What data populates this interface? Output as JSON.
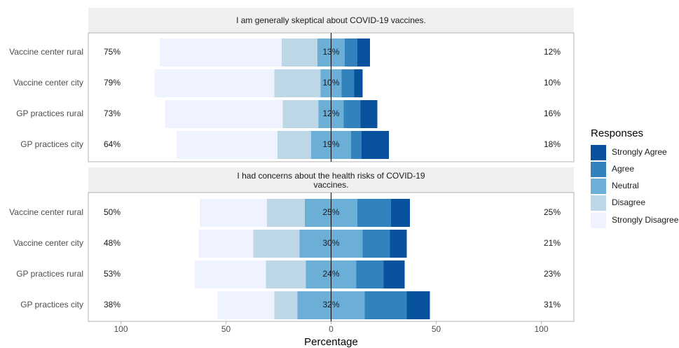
{
  "chart_data": {
    "type": "bar",
    "subtype": "diverging-stacked-horizontal-bar",
    "xlabel": "Percentage",
    "x_ticks": [
      100,
      50,
      0,
      50,
      100
    ],
    "xlim": [
      -100,
      100
    ],
    "legend": {
      "title": "Responses",
      "placement": "right",
      "entries": [
        "Strongly Agree",
        "Agree",
        "Neutral",
        "Disagree",
        "Strongly Disagree"
      ]
    },
    "colors": {
      "Strongly Agree": "#08519c",
      "Agree": "#3182bd",
      "Neutral": "#6baed6",
      "Disagree": "#bdd7e7",
      "Strongly Disagree": "#eff3ff"
    },
    "panels": [
      {
        "title": "I am generally skeptical about COVID-19 vaccines.",
        "categories": [
          "Vaccine center rural",
          "Vaccine center city",
          "GP practices rural",
          "GP practices city"
        ],
        "series": [
          {
            "name": "Strongly Disagree",
            "values": [
              58,
              57,
              56,
              48
            ]
          },
          {
            "name": "Disagree",
            "values": [
              17,
              22,
              17,
              16
            ]
          },
          {
            "name": "Neutral",
            "values": [
              13,
              10,
              12,
              19
            ]
          },
          {
            "name": "Agree",
            "values": [
              6,
              6,
              8,
              5
            ]
          },
          {
            "name": "Strongly Agree",
            "values": [
              6,
              4,
              8,
              13
            ]
          }
        ],
        "left_labels": [
          "75%",
          "79%",
          "73%",
          "64%"
        ],
        "center_labels": [
          "13%",
          "10%",
          "12%",
          "19%"
        ],
        "right_labels": [
          "12%",
          "10%",
          "16%",
          "18%"
        ]
      },
      {
        "title": "I had concerns about the health risks of COVID-19 vaccines.",
        "categories": [
          "Vaccine center rural",
          "Vaccine center city",
          "GP practices rural",
          "GP practices city"
        ],
        "series": [
          {
            "name": "Strongly Disagree",
            "values": [
              32,
              26,
              34,
              27
            ]
          },
          {
            "name": "Disagree",
            "values": [
              18,
              22,
              19,
              11
            ]
          },
          {
            "name": "Neutral",
            "values": [
              25,
              30,
              24,
              32
            ]
          },
          {
            "name": "Agree",
            "values": [
              16,
              13,
              13,
              20
            ]
          },
          {
            "name": "Strongly Agree",
            "values": [
              9,
              8,
              10,
              11
            ]
          }
        ],
        "left_labels": [
          "50%",
          "48%",
          "53%",
          "38%"
        ],
        "center_labels": [
          "25%",
          "30%",
          "24%",
          "32%"
        ],
        "right_labels": [
          "25%",
          "21%",
          "23%",
          "31%"
        ]
      }
    ]
  }
}
